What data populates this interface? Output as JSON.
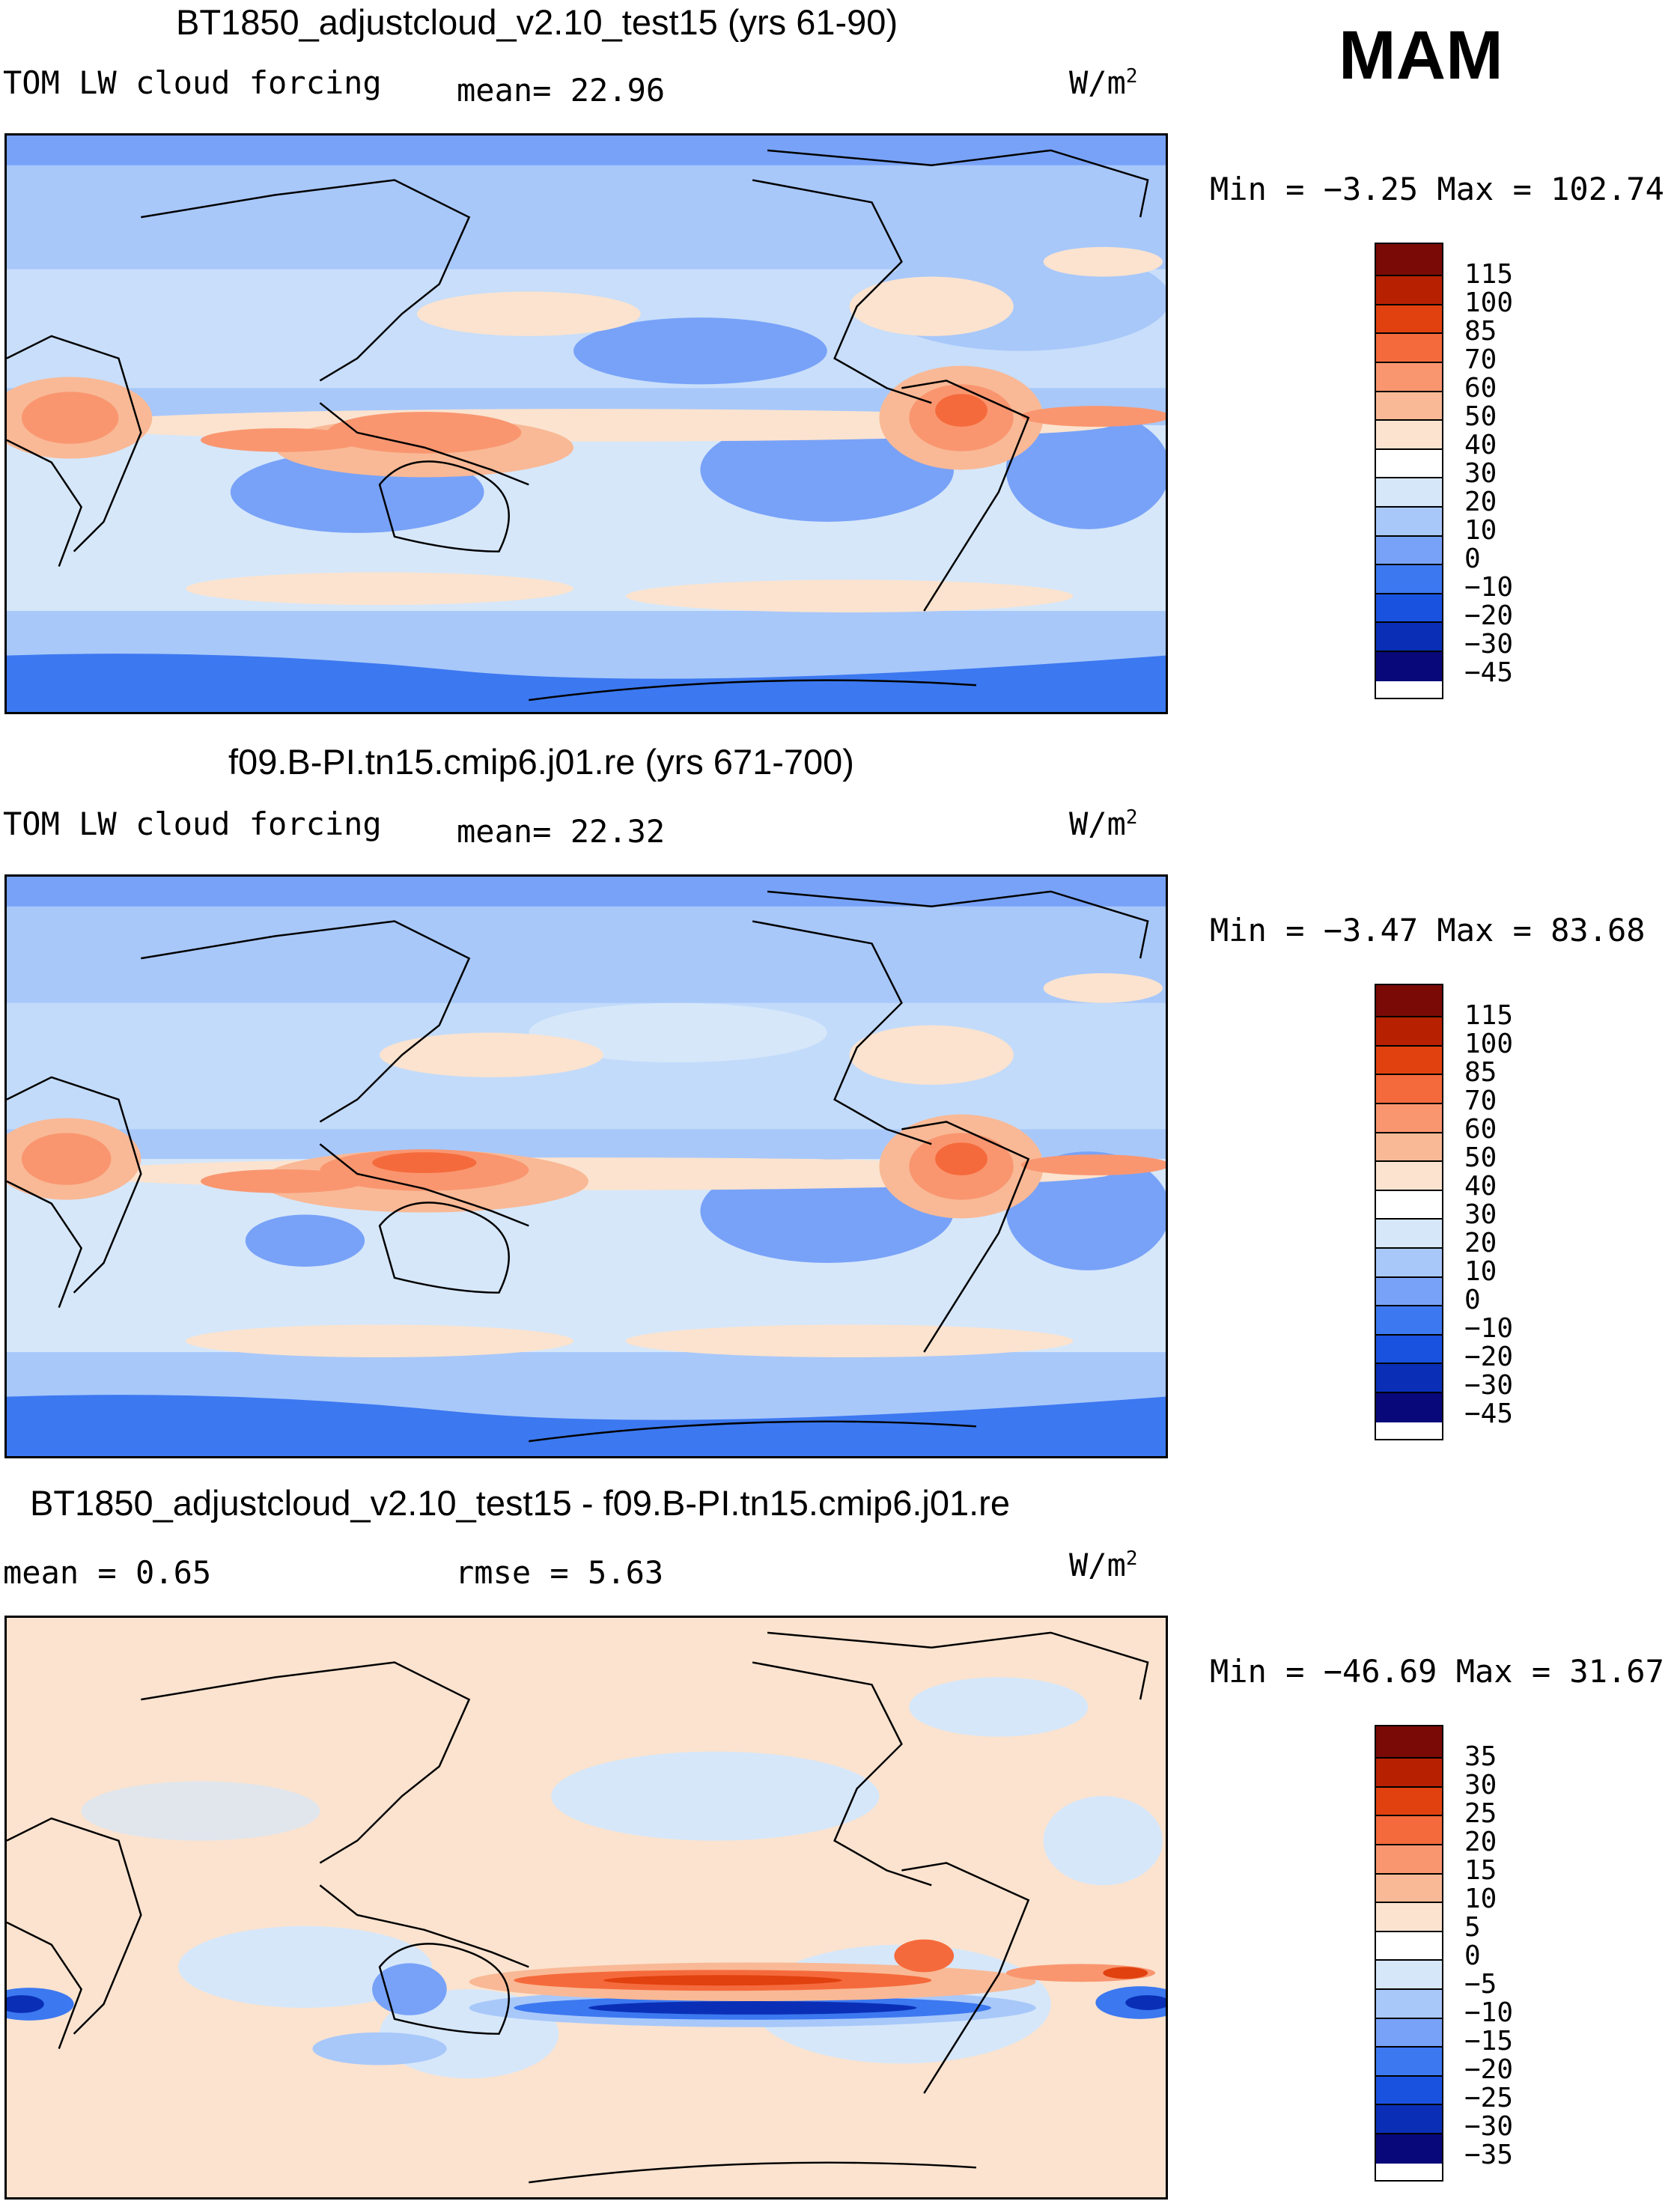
{
  "season": "MAM",
  "palette": {
    "abs": [
      "#08087a",
      "#0a2fb6",
      "#1a52e0",
      "#3c78f0",
      "#78a2f8",
      "#a8c8fa",
      "#d6e7fa",
      "#fbe3cf",
      "#f9b996",
      "#f99670",
      "#f56a3c",
      "#e1410f",
      "#b72102",
      "#7a0a06"
    ],
    "diff": [
      "#08087a",
      "#0a2fb6",
      "#1a52e0",
      "#3c78f0",
      "#78a2f8",
      "#a8c8fa",
      "#d6e7fa",
      "#fbe3cf",
      "#f9b996",
      "#f99670",
      "#f56a3c",
      "#e1410f",
      "#b72102",
      "#7a0a06"
    ]
  },
  "panels": [
    {
      "title": "BT1850_adjustcloud_v2.10_test15 (yrs 61-90)",
      "left_label": "TOM LW cloud forcing",
      "stat1": "mean=  22.96",
      "stat2": "",
      "units_base": "W/m",
      "units_exp": "2",
      "minmax": "Min =  −3.25 Max = 102.74",
      "colorbar_labels": [
        "115",
        "100",
        "85",
        "70",
        "60",
        "50",
        "40",
        "30",
        "20",
        "10",
        "0",
        "−10",
        "−20",
        "−30",
        "−45"
      ]
    },
    {
      "title": "f09.B-PI.tn15.cmip6.j01.re (yrs 671-700)",
      "left_label": "TOM LW cloud forcing",
      "stat1": "mean=  22.32",
      "stat2": "",
      "units_base": "W/m",
      "units_exp": "2",
      "minmax": "Min =  −3.47 Max =  83.68",
      "colorbar_labels": [
        "115",
        "100",
        "85",
        "70",
        "60",
        "50",
        "40",
        "30",
        "20",
        "10",
        "0",
        "−10",
        "−20",
        "−30",
        "−45"
      ]
    },
    {
      "title": "BT1850_adjustcloud_v2.10_test15 - f09.B-PI.tn15.cmip6.j01.re",
      "left_label": "mean =    0.65",
      "stat1": "rmse =    5.63",
      "stat2": "",
      "units_base": "W/m",
      "units_exp": "2",
      "minmax": "Min = −46.69 Max =  31.67",
      "colorbar_labels": [
        "35",
        "30",
        "25",
        "20",
        "15",
        "10",
        "5",
        "0",
        "−5",
        "−10",
        "−15",
        "−20",
        "−25",
        "−30",
        "−35"
      ]
    }
  ]
}
